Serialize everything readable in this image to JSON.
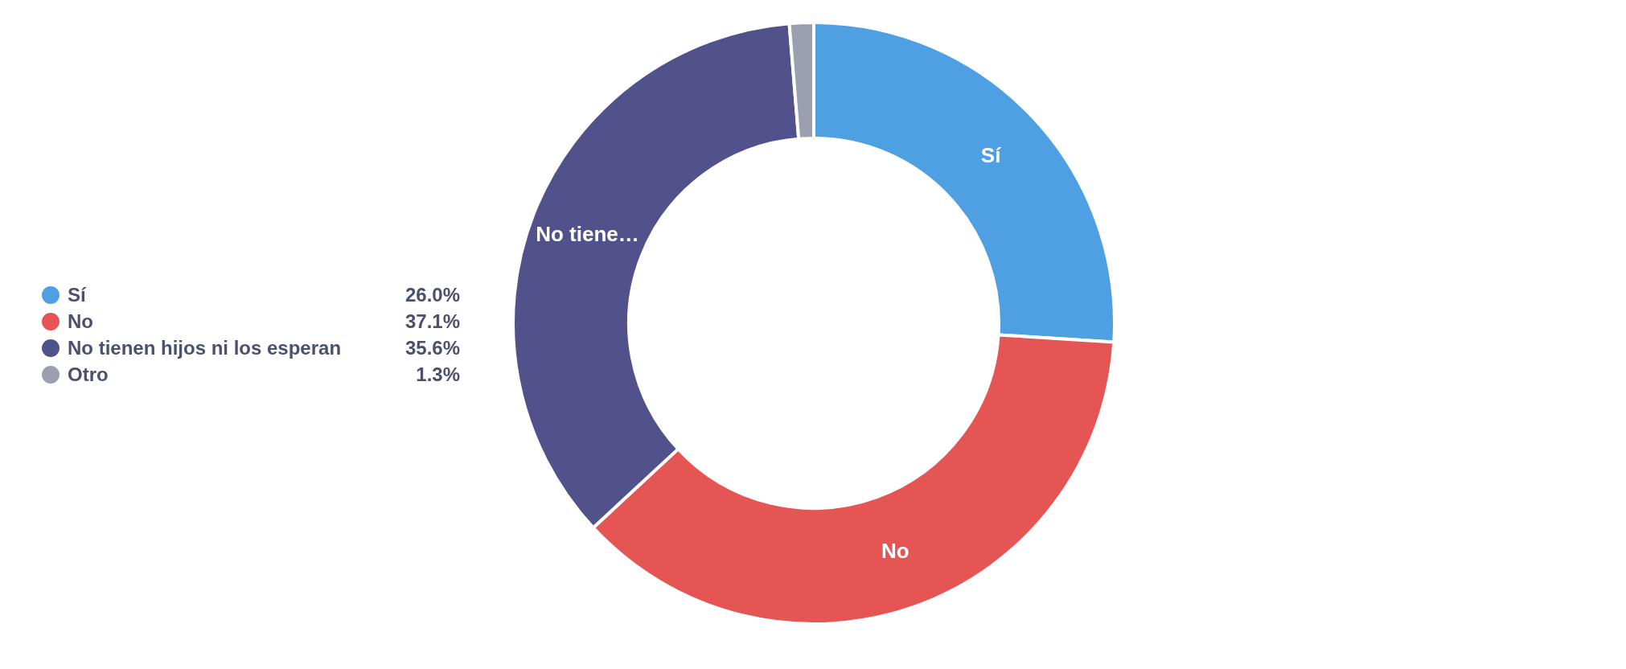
{
  "chart_data": {
    "type": "donut",
    "categories": [
      "Sí",
      "No",
      "No tienen hijos ni los esperan",
      "Otro"
    ],
    "values": [
      26.0,
      37.1,
      35.6,
      1.3
    ],
    "value_labels": [
      "26.0%",
      "37.1%",
      "35.6%",
      "1.3%"
    ],
    "colors": [
      "#4f9fe3",
      "#e45554",
      "#51518b",
      "#9b9fb0"
    ],
    "legend": "left",
    "annotations": [
      {
        "text": "Sí",
        "x": "Sí"
      },
      {
        "text": "No",
        "x": "No"
      },
      {
        "text": "No tiene…",
        "x": "No tienen hijos ni los esperan"
      }
    ]
  }
}
